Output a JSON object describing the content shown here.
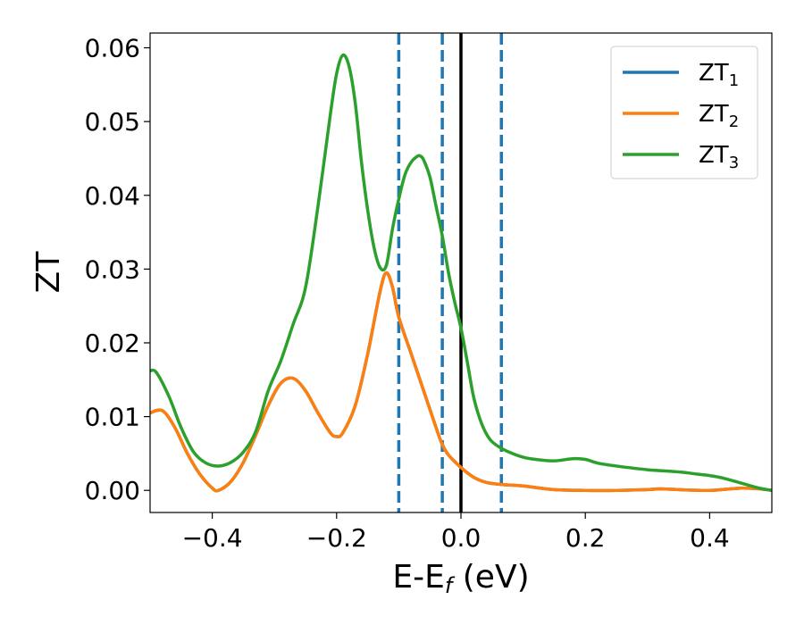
{
  "chart_data": {
    "type": "line",
    "xlabel": "E-E",
    "xlabel_sub": "f",
    "xlabel_unit": " (eV)",
    "ylabel": "ZT",
    "xlim": [
      -0.5,
      0.5
    ],
    "ylim": [
      -0.003,
      0.062
    ],
    "grid": false,
    "legend_position": "top-right",
    "x_ticks": [
      -0.4,
      -0.2,
      0.0,
      0.2,
      0.4
    ],
    "x_tick_labels": [
      "−0.4",
      "−0.2",
      "0.0",
      "0.2",
      "0.4"
    ],
    "y_ticks": [
      0.0,
      0.01,
      0.02,
      0.03,
      0.04,
      0.05,
      0.06
    ],
    "y_tick_labels": [
      "0.00",
      "0.01",
      "0.02",
      "0.03",
      "0.04",
      "0.05",
      "0.06"
    ],
    "vlines": [
      {
        "x": -0.1,
        "style": "dashed",
        "color": "#1f77b4"
      },
      {
        "x": -0.03,
        "style": "dashed",
        "color": "#1f77b4"
      },
      {
        "x": 0.0,
        "style": "solid",
        "color": "#000000"
      },
      {
        "x": 0.065,
        "style": "dashed",
        "color": "#1f77b4"
      }
    ],
    "series": [
      {
        "name": "ZT",
        "name_sub": "1",
        "color": "#1f77b4",
        "x": [
          -0.5,
          -0.48,
          -0.46,
          -0.44,
          -0.42,
          -0.4,
          -0.39,
          -0.37,
          -0.35,
          -0.33,
          -0.31,
          -0.29,
          -0.27,
          -0.25,
          -0.23,
          -0.21,
          -0.2,
          -0.19,
          -0.17,
          -0.15,
          -0.13,
          -0.12,
          -0.11,
          -0.1,
          -0.08,
          -0.06,
          -0.04,
          -0.03,
          -0.02,
          0.0,
          0.02,
          0.04,
          0.065,
          0.1,
          0.15,
          0.2,
          0.25,
          0.3,
          0.32,
          0.35,
          0.4,
          0.45,
          0.48,
          0.5
        ],
        "y": [
          0.0105,
          0.0108,
          0.0085,
          0.005,
          0.0022,
          0.0003,
          0.0,
          0.0012,
          0.0038,
          0.0075,
          0.0115,
          0.0145,
          0.0152,
          0.0135,
          0.0105,
          0.0078,
          0.0073,
          0.0078,
          0.0115,
          0.0185,
          0.027,
          0.0295,
          0.0275,
          0.0235,
          0.0185,
          0.0135,
          0.0085,
          0.0062,
          0.0048,
          0.0031,
          0.0018,
          0.0011,
          0.0008,
          0.0006,
          0.0001,
          0.0,
          0.0,
          0.0001,
          0.0002,
          0.0001,
          0.0,
          0.0003,
          0.0002,
          0.0
        ]
      },
      {
        "name": "ZT",
        "name_sub": "2",
        "color": "#ff7f0e",
        "x": [
          -0.5,
          -0.48,
          -0.46,
          -0.44,
          -0.42,
          -0.4,
          -0.39,
          -0.37,
          -0.35,
          -0.33,
          -0.31,
          -0.29,
          -0.27,
          -0.25,
          -0.23,
          -0.21,
          -0.2,
          -0.19,
          -0.17,
          -0.15,
          -0.13,
          -0.12,
          -0.11,
          -0.1,
          -0.08,
          -0.06,
          -0.04,
          -0.03,
          -0.02,
          0.0,
          0.02,
          0.04,
          0.065,
          0.1,
          0.15,
          0.2,
          0.25,
          0.3,
          0.32,
          0.35,
          0.4,
          0.45,
          0.48,
          0.5
        ],
        "y": [
          0.0105,
          0.0108,
          0.0085,
          0.005,
          0.0022,
          0.0003,
          0.0,
          0.0012,
          0.0038,
          0.0075,
          0.0115,
          0.0145,
          0.0152,
          0.0135,
          0.0105,
          0.0078,
          0.0073,
          0.0078,
          0.0115,
          0.0185,
          0.027,
          0.0295,
          0.0275,
          0.0235,
          0.0185,
          0.0135,
          0.0085,
          0.0062,
          0.0048,
          0.0031,
          0.0018,
          0.0011,
          0.0008,
          0.0006,
          0.0001,
          0.0,
          0.0,
          0.0001,
          0.0002,
          0.0001,
          0.0,
          0.0003,
          0.0002,
          0.0
        ]
      },
      {
        "name": "ZT",
        "name_sub": "3",
        "color": "#2ca02c",
        "x": [
          -0.5,
          -0.49,
          -0.47,
          -0.45,
          -0.43,
          -0.41,
          -0.39,
          -0.37,
          -0.35,
          -0.33,
          -0.31,
          -0.29,
          -0.27,
          -0.25,
          -0.23,
          -0.21,
          -0.2,
          -0.19,
          -0.18,
          -0.17,
          -0.16,
          -0.15,
          -0.14,
          -0.13,
          -0.12,
          -0.11,
          -0.1,
          -0.09,
          -0.08,
          -0.07,
          -0.065,
          -0.06,
          -0.05,
          -0.04,
          -0.03,
          -0.02,
          -0.01,
          0.0,
          0.01,
          0.02,
          0.03,
          0.04,
          0.05,
          0.065,
          0.08,
          0.1,
          0.12,
          0.15,
          0.18,
          0.2,
          0.22,
          0.25,
          0.3,
          0.35,
          0.38,
          0.4,
          0.42,
          0.45,
          0.48,
          0.5
        ],
        "y": [
          0.0162,
          0.016,
          0.0128,
          0.0085,
          0.0052,
          0.0037,
          0.0033,
          0.0038,
          0.0052,
          0.008,
          0.0135,
          0.0175,
          0.0225,
          0.0275,
          0.0385,
          0.051,
          0.0565,
          0.059,
          0.0575,
          0.0525,
          0.0445,
          0.038,
          0.033,
          0.0302,
          0.0305,
          0.0355,
          0.0395,
          0.0428,
          0.0445,
          0.0453,
          0.0453,
          0.0448,
          0.0425,
          0.0385,
          0.0345,
          0.0295,
          0.0255,
          0.022,
          0.0175,
          0.0128,
          0.0098,
          0.0078,
          0.0066,
          0.0057,
          0.0051,
          0.0045,
          0.0042,
          0.004,
          0.0043,
          0.0042,
          0.0037,
          0.0033,
          0.0028,
          0.0025,
          0.0022,
          0.002,
          0.0017,
          0.001,
          0.0003,
          0.0
        ]
      }
    ]
  }
}
